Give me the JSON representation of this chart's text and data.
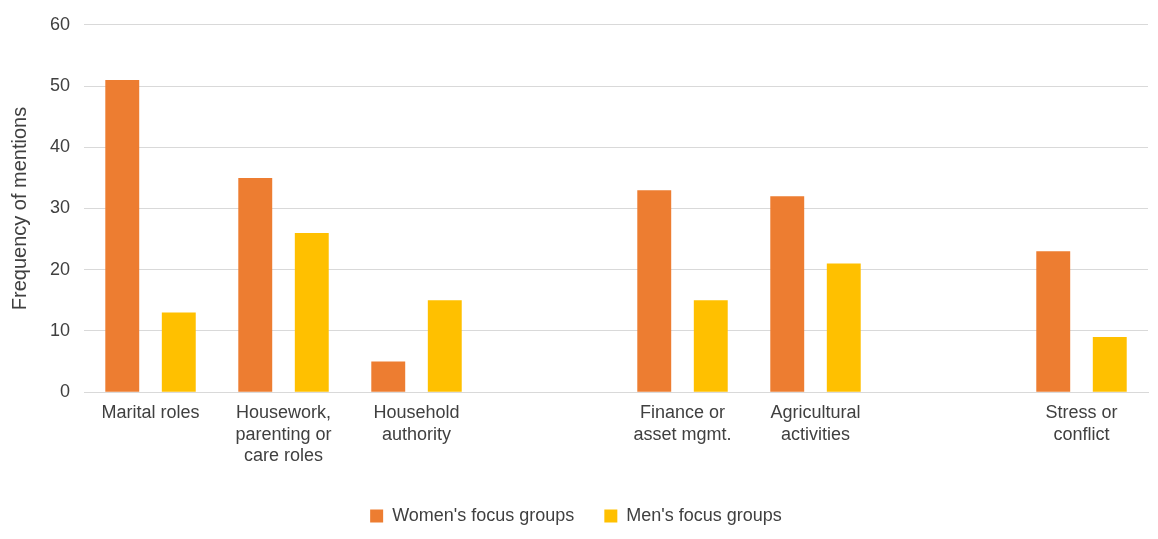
{
  "chart_data": {
    "type": "bar",
    "ylabel": "Frequency of mentions",
    "categories": [
      "Marital roles",
      "Housework, parenting or care roles",
      "Household authority",
      null,
      "Finance or asset mgmt.",
      "Agricultural activities",
      null,
      "Stress or conflict"
    ],
    "series": [
      {
        "name": "Women's focus groups",
        "color": "#ed7d31",
        "values": [
          51,
          35,
          5,
          null,
          33,
          32,
          null,
          23
        ]
      },
      {
        "name": "Men's focus groups",
        "color": "#ffc000",
        "values": [
          13,
          26,
          15,
          null,
          15,
          21,
          null,
          9
        ]
      }
    ],
    "ylim": [
      0,
      60
    ],
    "yticks": [
      0,
      10,
      20,
      30,
      40,
      50,
      60
    ],
    "grid": "y",
    "legend": "bottom"
  }
}
